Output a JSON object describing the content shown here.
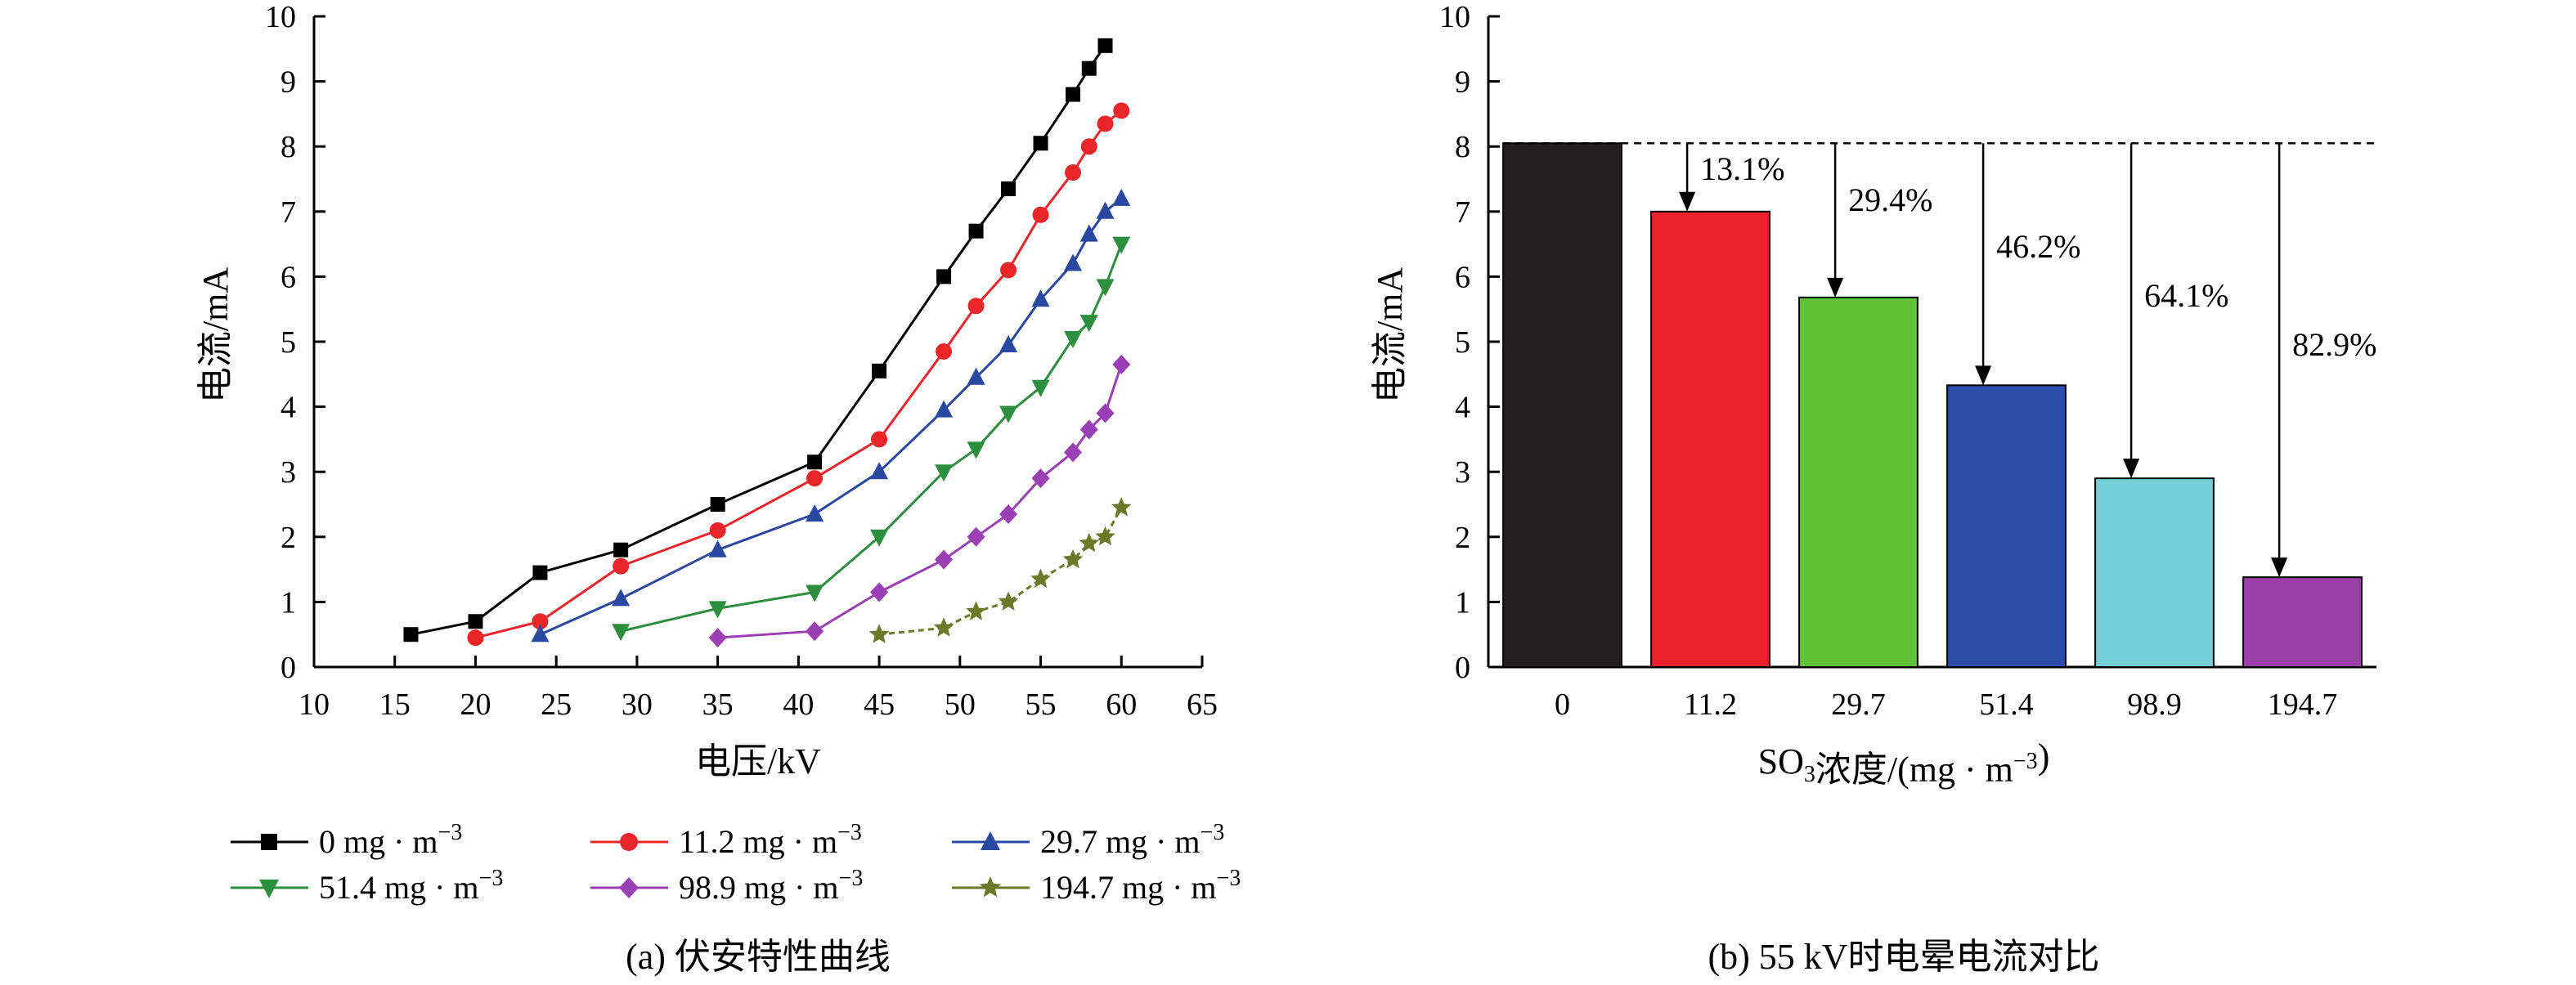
{
  "chart_data": [
    {
      "type": "line",
      "caption": "(a) 伏安特性曲线",
      "xlabel": "电压/kV",
      "ylabel": "电流/mA",
      "xlim": [
        10,
        65
      ],
      "ylim": [
        0,
        10
      ],
      "xticks": [
        "10",
        "15",
        "20",
        "25",
        "30",
        "35",
        "40",
        "45",
        "50",
        "55",
        "60",
        "65"
      ],
      "yticks": [
        "0",
        "1",
        "2",
        "3",
        "4",
        "5",
        "6",
        "7",
        "8",
        "9",
        "10"
      ],
      "grid": false,
      "legend_position": "bottom",
      "series": [
        {
          "name": "0 mg · m⁻³",
          "color": "#000000",
          "marker": "square",
          "x": [
            16,
            20,
            24,
            29,
            35,
            41,
            45,
            49,
            51,
            53,
            55,
            57,
            58,
            59
          ],
          "y": [
            0.5,
            0.7,
            1.45,
            1.8,
            2.5,
            3.15,
            4.55,
            6.0,
            6.7,
            7.35,
            8.05,
            8.8,
            9.2,
            9.55
          ]
        },
        {
          "name": "11.2 mg · m⁻³",
          "color": "#e8262a",
          "marker": "circle",
          "x": [
            20,
            24,
            29,
            35,
            41,
            45,
            49,
            51,
            53,
            55,
            57,
            58,
            59,
            60
          ],
          "y": [
            0.45,
            0.7,
            1.55,
            2.1,
            2.9,
            3.5,
            4.85,
            5.55,
            6.1,
            6.95,
            7.6,
            8.0,
            8.35,
            8.55
          ]
        },
        {
          "name": "29.7 mg · m⁻³",
          "color": "#2948a1",
          "marker": "triangle-up",
          "x": [
            24,
            29,
            35,
            41,
            45,
            49,
            51,
            53,
            55,
            57,
            58,
            59,
            60
          ],
          "y": [
            0.5,
            1.05,
            1.8,
            2.35,
            3.0,
            3.95,
            4.45,
            4.95,
            5.65,
            6.2,
            6.65,
            7.0,
            7.2
          ]
        },
        {
          "name": "51.4  mg · m⁻³",
          "color": "#2b8f3d",
          "marker": "triangle-down",
          "x": [
            29,
            35,
            41,
            45,
            49,
            51,
            53,
            55,
            57,
            58,
            59,
            60
          ],
          "y": [
            0.55,
            0.9,
            1.15,
            2.0,
            3.0,
            3.35,
            3.9,
            4.3,
            5.05,
            5.3,
            5.85,
            6.5
          ]
        },
        {
          "name": "98.9 mg · m⁻³",
          "color": "#9b3fb5",
          "marker": "diamond",
          "x": [
            35,
            41,
            45,
            49,
            51,
            53,
            55,
            57,
            58,
            59,
            60
          ],
          "y": [
            0.45,
            0.55,
            1.15,
            1.65,
            2.0,
            2.35,
            2.9,
            3.3,
            3.65,
            3.9,
            4.65
          ]
        },
        {
          "name": "194.7 mg · m⁻³",
          "color": "#6b7a29",
          "marker": "star",
          "x": [
            45,
            49,
            51,
            53,
            55,
            57,
            58,
            59,
            60
          ],
          "y": [
            0.5,
            0.6,
            0.85,
            1.0,
            1.35,
            1.65,
            1.9,
            2.0,
            2.45
          ]
        }
      ]
    },
    {
      "type": "bar",
      "caption": "(b) 55 kV时电晕电流对比",
      "xlabel": "SO₃浓度/(mg · m⁻³)",
      "ylabel": "电流/mA",
      "ylim": [
        0,
        10
      ],
      "yticks": [
        "0",
        "1",
        "2",
        "3",
        "4",
        "5",
        "6",
        "7",
        "8",
        "9",
        "10"
      ],
      "categories": [
        "0",
        "11.2",
        "29.7",
        "51.4",
        "98.9",
        "194.7"
      ],
      "values": [
        8.05,
        7.0,
        5.68,
        4.33,
        2.9,
        1.38
      ],
      "colors": [
        "#231f20",
        "#ed2129",
        "#62c236",
        "#2d4ea8",
        "#74cfd6",
        "#9b40a8"
      ],
      "reference_line": 8.05,
      "reductions": [
        "13.1%",
        "29.4%",
        "46.2%",
        "64.1%",
        "82.9%"
      ]
    }
  ]
}
